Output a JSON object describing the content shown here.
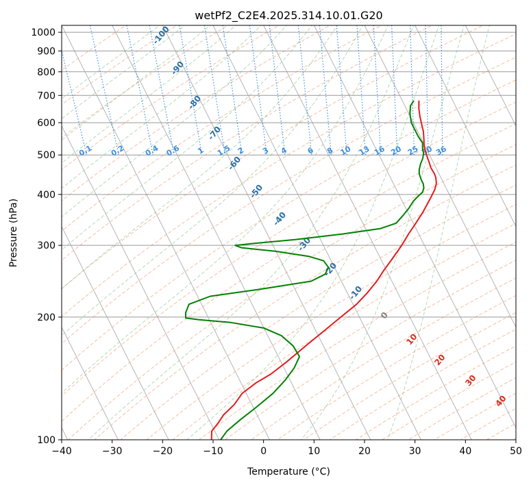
{
  "chart_data": {
    "type": "line",
    "subtype": "skew-t log-p sounding",
    "title": "wetPf2_C2E4.2025.314.10.01.G20",
    "xlabel": "Temperature (°C)",
    "ylabel": "Pressure (hPa)",
    "xlim": [
      -40,
      50
    ],
    "ylim": [
      1000,
      100
    ],
    "x_ticks": [
      -40,
      -30,
      -20,
      -10,
      0,
      10,
      20,
      30,
      40,
      50
    ],
    "y_ticks": [
      100,
      200,
      300,
      400,
      500,
      600,
      700,
      800,
      900,
      1000
    ],
    "skew_deg_per_decade": 40.5,
    "mixing_ratio_labels": [
      "0.1",
      "0.2",
      "0.4",
      "0.6",
      "1",
      "1.5",
      "2",
      "3",
      "4",
      "6",
      "8",
      "10",
      "13",
      "16",
      "20",
      "25",
      "30",
      "36"
    ],
    "moist_adiabat_labels": [
      "-100",
      "-90",
      "-80",
      "-70",
      "-60",
      "-50",
      "-40",
      "-30",
      "-20",
      "-10",
      "0",
      "10",
      "20",
      "30",
      "40"
    ],
    "series": [
      {
        "name": "Temperature",
        "color": "#e41a1c",
        "points": [
          [
            680,
            23.3
          ],
          [
            650,
            22.5
          ],
          [
            620,
            21.9
          ],
          [
            595,
            21.5
          ],
          [
            570,
            21.1
          ],
          [
            545,
            20.4
          ],
          [
            525,
            19.8
          ],
          [
            500,
            19.4
          ],
          [
            480,
            19.2
          ],
          [
            465,
            19.0
          ],
          [
            450,
            19.1
          ],
          [
            440,
            19.0
          ],
          [
            425,
            18.5
          ],
          [
            410,
            17.5
          ],
          [
            395,
            16.2
          ],
          [
            380,
            14.8
          ],
          [
            360,
            12.8
          ],
          [
            340,
            10.5
          ],
          [
            320,
            8.0
          ],
          [
            300,
            5.5
          ],
          [
            280,
            2.6
          ],
          [
            260,
            -0.6
          ],
          [
            245,
            -3.0
          ],
          [
            230,
            -5.9
          ],
          [
            215,
            -9.3
          ],
          [
            200,
            -13.7
          ],
          [
            185,
            -18.4
          ],
          [
            170,
            -23.5
          ],
          [
            155,
            -29.0
          ],
          [
            145,
            -33.2
          ],
          [
            138,
            -37.0
          ],
          [
            130,
            -40.8
          ],
          [
            122,
            -43.5
          ],
          [
            115,
            -46.7
          ],
          [
            110,
            -48.5
          ],
          [
            105,
            -50.6
          ],
          [
            100,
            -51.5
          ]
        ]
      },
      {
        "name": "Dewpoint",
        "color": "#008000",
        "points": [
          [
            680,
            22.3
          ],
          [
            660,
            21.1
          ],
          [
            630,
            20.2
          ],
          [
            600,
            19.6
          ],
          [
            575,
            19.6
          ],
          [
            555,
            19.6
          ],
          [
            535,
            19.8
          ],
          [
            520,
            19.3
          ],
          [
            505,
            19.0
          ],
          [
            490,
            18.3
          ],
          [
            475,
            17.3
          ],
          [
            460,
            16.5
          ],
          [
            450,
            16.1
          ],
          [
            435,
            15.9
          ],
          [
            425,
            15.9
          ],
          [
            415,
            15.6
          ],
          [
            405,
            14.9
          ],
          [
            395,
            13.5
          ],
          [
            385,
            12.2
          ],
          [
            370,
            10.6
          ],
          [
            355,
            8.7
          ],
          [
            340,
            6.6
          ],
          [
            330,
            3.0
          ],
          [
            320,
            -5.0
          ],
          [
            310,
            -15.0
          ],
          [
            303,
            -24.0
          ],
          [
            300,
            -27.5
          ],
          [
            296,
            -26.5
          ],
          [
            290,
            -20.0
          ],
          [
            282,
            -14.0
          ],
          [
            275,
            -11.5
          ],
          [
            265,
            -11.2
          ],
          [
            255,
            -12.5
          ],
          [
            245,
            -16.0
          ],
          [
            235,
            -26.0
          ],
          [
            225,
            -37.5
          ],
          [
            215,
            -42.5
          ],
          [
            205,
            -44.0
          ],
          [
            199,
            -44.5
          ],
          [
            197,
            -42.0
          ],
          [
            194,
            -36.0
          ],
          [
            188,
            -30.0
          ],
          [
            180,
            -27.3
          ],
          [
            170,
            -26.0
          ],
          [
            160,
            -25.8
          ],
          [
            150,
            -28.0
          ],
          [
            140,
            -31.0
          ],
          [
            130,
            -34.7
          ],
          [
            120,
            -39.5
          ],
          [
            112,
            -43.8
          ],
          [
            105,
            -47.6
          ],
          [
            100,
            -49.7
          ]
        ]
      }
    ],
    "colors": {
      "isotherm": "#b4b4b4",
      "dry_adiabat": "#f4a582",
      "moist_adiabat": "#7fbf7f",
      "mixing_ratio": "#3a8fe0",
      "moist_label": "#2b6fa5",
      "theta_label_red": "#d7301f",
      "theta_label_gray": "#808080",
      "isobar": "#999999"
    }
  }
}
